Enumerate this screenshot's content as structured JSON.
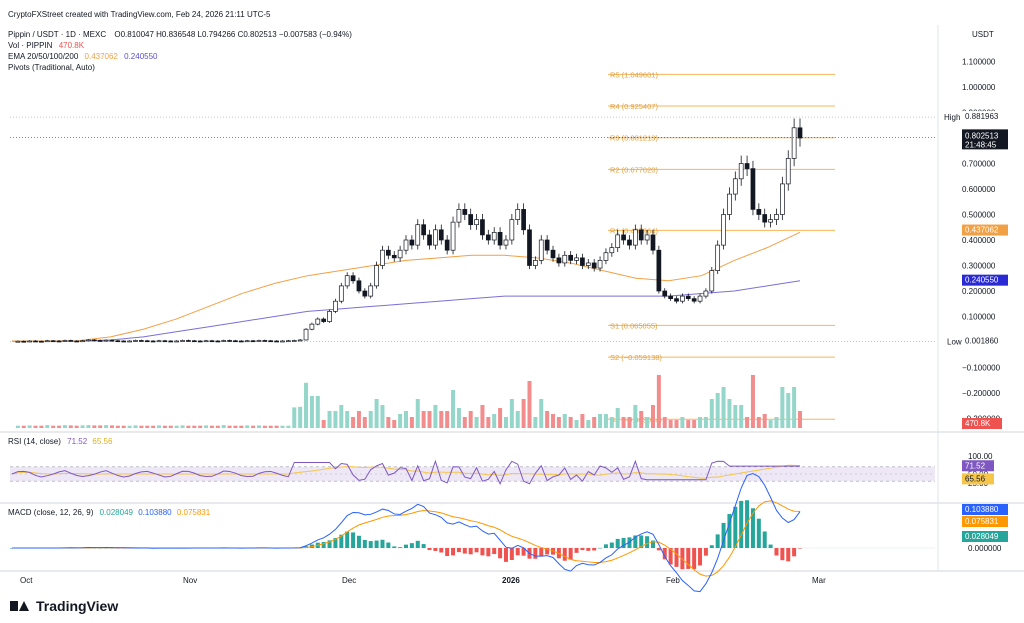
{
  "header": {
    "created_by": "CryptoFXStreet created with TradingView.com, Feb 24, 2026 21:11 UTC-5",
    "symbol_line": "Pippin / USDT · 1D · MEXC",
    "ohlc": "O0.810047 H0.836548 L0.794266 C0.802513 −0.007583 (−0.94%)",
    "vol_label": "Vol · PIPPIN",
    "vol_value": "470.8K",
    "ema_label": "EMA 20/50/100/200",
    "ema_value_1": "0.437062",
    "ema_value_2": "0.240550",
    "pivots_label": "Pivots (Traditional, Auto)",
    "currency": "USDT"
  },
  "colors": {
    "up": "#26a69a",
    "down": "#131722",
    "pivot": "#f7b55c",
    "ema_fast": "#f2a045",
    "ema_slow": "#7b6fd6",
    "rsi": "#7e57c2",
    "rsi_ma": "#f5c64a",
    "macd": "#2962ff",
    "signal": "#ff9800",
    "vol_up": "#94d6c9",
    "vol_down": "#f28d8d"
  },
  "price_axis": {
    "ticks": [
      "1.100000",
      "1.000000",
      "0.900000",
      "0.800000",
      "0.700000",
      "0.600000",
      "0.500000",
      "0.400000",
      "0.300000",
      "0.200000",
      "0.100000",
      "0.000000",
      "−0.100000",
      "−0.200000",
      "−0.300000"
    ],
    "tick_values": [
      1.1,
      1.0,
      0.9,
      0.8,
      0.7,
      0.6,
      0.5,
      0.4,
      0.3,
      0.2,
      0.1,
      0.0,
      -0.1,
      -0.2,
      -0.3
    ],
    "high_label": "High",
    "high_value": "0.881963",
    "low_label": "Low",
    "low_value": "0.001860",
    "last_price": "0.802513",
    "countdown": "21:48:45",
    "ema50_tag": "0.437062",
    "ema200_tag": "0.240550",
    "vol_tag": "470.8K"
  },
  "time_axis": {
    "labels": [
      "Oct",
      "Nov",
      "Dec",
      "2026",
      "Feb",
      "Mar"
    ]
  },
  "pivots": [
    {
      "label": "R5 (1.049601)",
      "value": 1.049601
    },
    {
      "label": "R4 (0.925407)",
      "value": 0.925407
    },
    {
      "label": "R3 (0.801213)",
      "value": 0.801213
    },
    {
      "label": "R2 (0.677020)",
      "value": 0.67702
    },
    {
      "label": "R1 (0.437964)",
      "value": 0.437964
    },
    {
      "label": "S1 (0.065055)",
      "value": 0.065055
    },
    {
      "label": "S2 (−0.059138)",
      "value": -0.059138
    },
    {
      "label": "S3 (−0.303024)",
      "value": -0.303024
    }
  ],
  "rsi": {
    "label": "RSI (14, close)",
    "value": "71.52",
    "ma_value": "65.56",
    "ticks": [
      "100.00",
      "50.00",
      "25.00"
    ],
    "tick_values": [
      100,
      50,
      25
    ],
    "tag_value": "71.52",
    "tag_ma": "65.56"
  },
  "macd": {
    "label": "MACD (close, 12, 26, 9)",
    "hist_value": "0.028049",
    "macd_value": "0.103880",
    "signal_value": "0.075831",
    "ticks": [
      "0.000000"
    ],
    "tag_macd": "0.103880",
    "tag_signal": "0.075831",
    "tag_hist": "0.028049"
  },
  "brand": "TradingView",
  "chart_data": {
    "type": "candlestick",
    "title": "Pippin / USDT · 1D · MEXC",
    "ylim": [
      -0.33,
      1.15
    ],
    "segments": [
      {
        "from": "Oct",
        "to": "late Nov",
        "price_range": [
          0.0,
          0.02
        ]
      },
      {
        "date": "early Dec",
        "close": 0.18
      },
      {
        "date": "late Dec",
        "high": 0.72,
        "close": 0.52
      },
      {
        "date": "early Jan",
        "close": 0.36
      },
      {
        "date": "late Jan",
        "close": 0.44
      },
      {
        "date": "early Feb",
        "low": 0.16,
        "close": 0.18
      },
      {
        "date": "mid Feb",
        "high": 0.76,
        "close": 0.5
      },
      {
        "date": "Feb 24",
        "open": 0.810047,
        "high": 0.836548,
        "low": 0.794266,
        "close": 0.802513
      }
    ],
    "close_series": [
      0.002,
      0.003,
      0.002,
      0.004,
      0.003,
      0.002,
      0.005,
      0.004,
      0.003,
      0.006,
      0.004,
      0.003,
      0.005,
      0.008,
      0.006,
      0.004,
      0.007,
      0.005,
      0.004,
      0.003,
      0.004,
      0.006,
      0.005,
      0.004,
      0.003,
      0.005,
      0.004,
      0.003,
      0.004,
      0.006,
      0.005,
      0.004,
      0.003,
      0.005,
      0.004,
      0.003,
      0.006,
      0.005,
      0.004,
      0.003,
      0.005,
      0.004,
      0.006,
      0.005,
      0.004,
      0.003,
      0.004,
      0.005,
      0.006,
      0.008,
      0.05,
      0.07,
      0.09,
      0.08,
      0.12,
      0.16,
      0.22,
      0.26,
      0.24,
      0.2,
      0.18,
      0.22,
      0.3,
      0.36,
      0.34,
      0.33,
      0.36,
      0.4,
      0.38,
      0.46,
      0.42,
      0.38,
      0.44,
      0.4,
      0.36,
      0.47,
      0.52,
      0.5,
      0.46,
      0.48,
      0.42,
      0.4,
      0.43,
      0.38,
      0.4,
      0.48,
      0.52,
      0.44,
      0.3,
      0.32,
      0.4,
      0.36,
      0.33,
      0.31,
      0.34,
      0.32,
      0.33,
      0.3,
      0.31,
      0.29,
      0.32,
      0.35,
      0.37,
      0.42,
      0.4,
      0.38,
      0.44,
      0.4,
      0.42,
      0.36,
      0.2,
      0.18,
      0.17,
      0.16,
      0.18,
      0.17,
      0.16,
      0.18,
      0.2,
      0.28,
      0.38,
      0.5,
      0.58,
      0.64,
      0.7,
      0.68,
      0.52,
      0.5,
      0.47,
      0.48,
      0.5,
      0.62,
      0.72,
      0.84,
      0.8
    ],
    "ema50": [
      0.004,
      0.004,
      0.005,
      0.02,
      0.05,
      0.09,
      0.14,
      0.19,
      0.23,
      0.26,
      0.28,
      0.3,
      0.32,
      0.33,
      0.34,
      0.34,
      0.33,
      0.31,
      0.28,
      0.25,
      0.24,
      0.26,
      0.32,
      0.37,
      0.43
    ],
    "ema200": [
      0.003,
      0.003,
      0.004,
      0.008,
      0.02,
      0.04,
      0.06,
      0.08,
      0.1,
      0.12,
      0.13,
      0.14,
      0.15,
      0.16,
      0.17,
      0.18,
      0.18,
      0.18,
      0.18,
      0.18,
      0.18,
      0.19,
      0.2,
      0.22,
      0.24
    ]
  }
}
